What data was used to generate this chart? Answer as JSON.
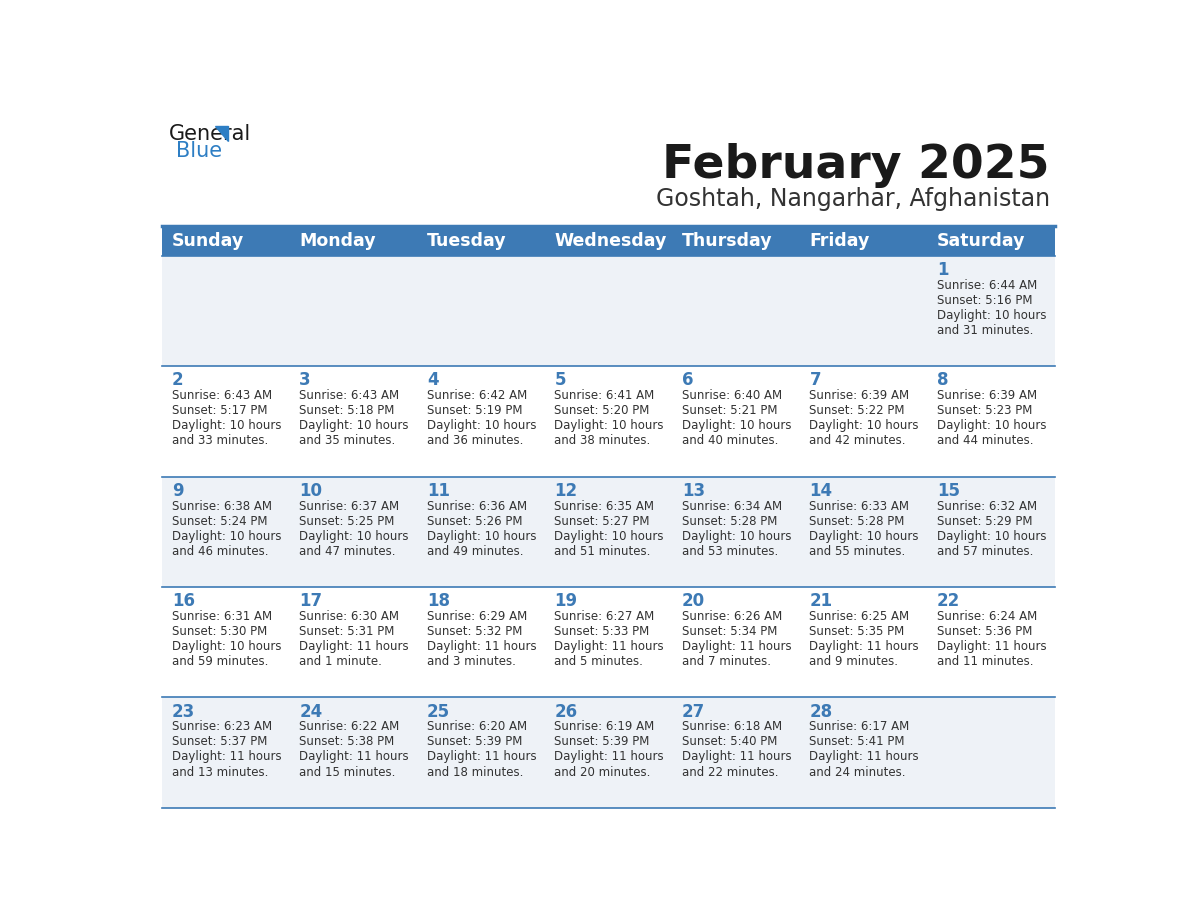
{
  "title": "February 2025",
  "subtitle": "Goshtah, Nangarhar, Afghanistan",
  "header_bg": "#3d7ab5",
  "header_text_color": "#ffffff",
  "days_of_week": [
    "Sunday",
    "Monday",
    "Tuesday",
    "Wednesday",
    "Thursday",
    "Friday",
    "Saturday"
  ],
  "weeks": [
    [
      {
        "day": "",
        "info": ""
      },
      {
        "day": "",
        "info": ""
      },
      {
        "day": "",
        "info": ""
      },
      {
        "day": "",
        "info": ""
      },
      {
        "day": "",
        "info": ""
      },
      {
        "day": "",
        "info": ""
      },
      {
        "day": "1",
        "info": "Sunrise: 6:44 AM\nSunset: 5:16 PM\nDaylight: 10 hours\nand 31 minutes."
      }
    ],
    [
      {
        "day": "2",
        "info": "Sunrise: 6:43 AM\nSunset: 5:17 PM\nDaylight: 10 hours\nand 33 minutes."
      },
      {
        "day": "3",
        "info": "Sunrise: 6:43 AM\nSunset: 5:18 PM\nDaylight: 10 hours\nand 35 minutes."
      },
      {
        "day": "4",
        "info": "Sunrise: 6:42 AM\nSunset: 5:19 PM\nDaylight: 10 hours\nand 36 minutes."
      },
      {
        "day": "5",
        "info": "Sunrise: 6:41 AM\nSunset: 5:20 PM\nDaylight: 10 hours\nand 38 minutes."
      },
      {
        "day": "6",
        "info": "Sunrise: 6:40 AM\nSunset: 5:21 PM\nDaylight: 10 hours\nand 40 minutes."
      },
      {
        "day": "7",
        "info": "Sunrise: 6:39 AM\nSunset: 5:22 PM\nDaylight: 10 hours\nand 42 minutes."
      },
      {
        "day": "8",
        "info": "Sunrise: 6:39 AM\nSunset: 5:23 PM\nDaylight: 10 hours\nand 44 minutes."
      }
    ],
    [
      {
        "day": "9",
        "info": "Sunrise: 6:38 AM\nSunset: 5:24 PM\nDaylight: 10 hours\nand 46 minutes."
      },
      {
        "day": "10",
        "info": "Sunrise: 6:37 AM\nSunset: 5:25 PM\nDaylight: 10 hours\nand 47 minutes."
      },
      {
        "day": "11",
        "info": "Sunrise: 6:36 AM\nSunset: 5:26 PM\nDaylight: 10 hours\nand 49 minutes."
      },
      {
        "day": "12",
        "info": "Sunrise: 6:35 AM\nSunset: 5:27 PM\nDaylight: 10 hours\nand 51 minutes."
      },
      {
        "day": "13",
        "info": "Sunrise: 6:34 AM\nSunset: 5:28 PM\nDaylight: 10 hours\nand 53 minutes."
      },
      {
        "day": "14",
        "info": "Sunrise: 6:33 AM\nSunset: 5:28 PM\nDaylight: 10 hours\nand 55 minutes."
      },
      {
        "day": "15",
        "info": "Sunrise: 6:32 AM\nSunset: 5:29 PM\nDaylight: 10 hours\nand 57 minutes."
      }
    ],
    [
      {
        "day": "16",
        "info": "Sunrise: 6:31 AM\nSunset: 5:30 PM\nDaylight: 10 hours\nand 59 minutes."
      },
      {
        "day": "17",
        "info": "Sunrise: 6:30 AM\nSunset: 5:31 PM\nDaylight: 11 hours\nand 1 minute."
      },
      {
        "day": "18",
        "info": "Sunrise: 6:29 AM\nSunset: 5:32 PM\nDaylight: 11 hours\nand 3 minutes."
      },
      {
        "day": "19",
        "info": "Sunrise: 6:27 AM\nSunset: 5:33 PM\nDaylight: 11 hours\nand 5 minutes."
      },
      {
        "day": "20",
        "info": "Sunrise: 6:26 AM\nSunset: 5:34 PM\nDaylight: 11 hours\nand 7 minutes."
      },
      {
        "day": "21",
        "info": "Sunrise: 6:25 AM\nSunset: 5:35 PM\nDaylight: 11 hours\nand 9 minutes."
      },
      {
        "day": "22",
        "info": "Sunrise: 6:24 AM\nSunset: 5:36 PM\nDaylight: 11 hours\nand 11 minutes."
      }
    ],
    [
      {
        "day": "23",
        "info": "Sunrise: 6:23 AM\nSunset: 5:37 PM\nDaylight: 11 hours\nand 13 minutes."
      },
      {
        "day": "24",
        "info": "Sunrise: 6:22 AM\nSunset: 5:38 PM\nDaylight: 11 hours\nand 15 minutes."
      },
      {
        "day": "25",
        "info": "Sunrise: 6:20 AM\nSunset: 5:39 PM\nDaylight: 11 hours\nand 18 minutes."
      },
      {
        "day": "26",
        "info": "Sunrise: 6:19 AM\nSunset: 5:39 PM\nDaylight: 11 hours\nand 20 minutes."
      },
      {
        "day": "27",
        "info": "Sunrise: 6:18 AM\nSunset: 5:40 PM\nDaylight: 11 hours\nand 22 minutes."
      },
      {
        "day": "28",
        "info": "Sunrise: 6:17 AM\nSunset: 5:41 PM\nDaylight: 11 hours\nand 24 minutes."
      },
      {
        "day": "",
        "info": ""
      }
    ]
  ],
  "cell_bg_even": "#eef2f7",
  "cell_bg_odd": "#ffffff",
  "grid_color": "#3d7ab5",
  "day_number_color": "#3d7ab5",
  "info_text_color": "#333333",
  "title_color": "#1a1a1a",
  "subtitle_color": "#333333",
  "logo_color1": "#1a1a1a",
  "logo_color2": "#2d7ec4",
  "logo_triangle_color": "#2d7ec4"
}
